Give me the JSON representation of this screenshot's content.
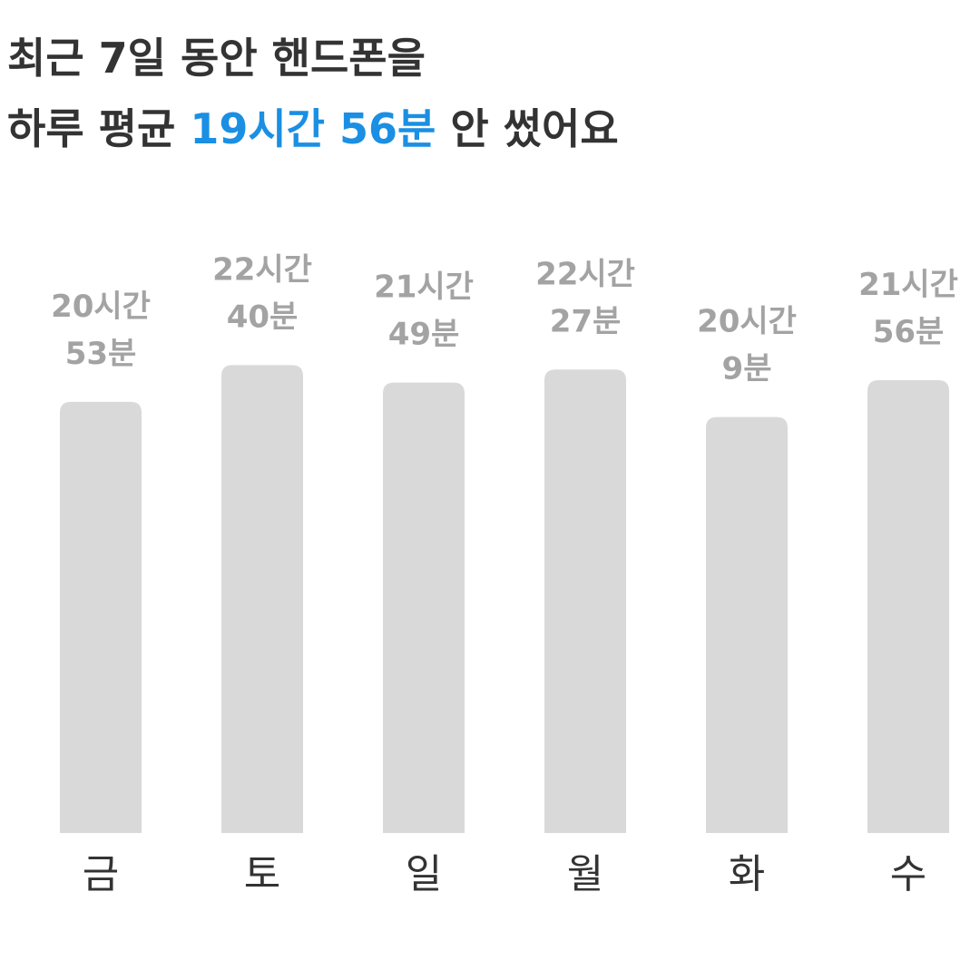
{
  "header": {
    "line1": "최근 7일 동안 핸드폰을",
    "line2_start": "하루 평균",
    "highlight": "19시간 56분",
    "line2_end": "안 썼어요"
  },
  "chart_data": {
    "type": "bar",
    "categories": [
      "금",
      "토",
      "일",
      "월",
      "화",
      "수"
    ],
    "values": [
      1253,
      1360,
      1309,
      1347,
      1209,
      1316
    ],
    "value_labels": [
      "20시간 53분",
      "22시간 40분",
      "21시간 49분",
      "22시간 27분",
      "20시간 9분",
      "21시간 56분"
    ],
    "color": "#d9d9d9",
    "ylim": [
      0,
      1440
    ]
  }
}
